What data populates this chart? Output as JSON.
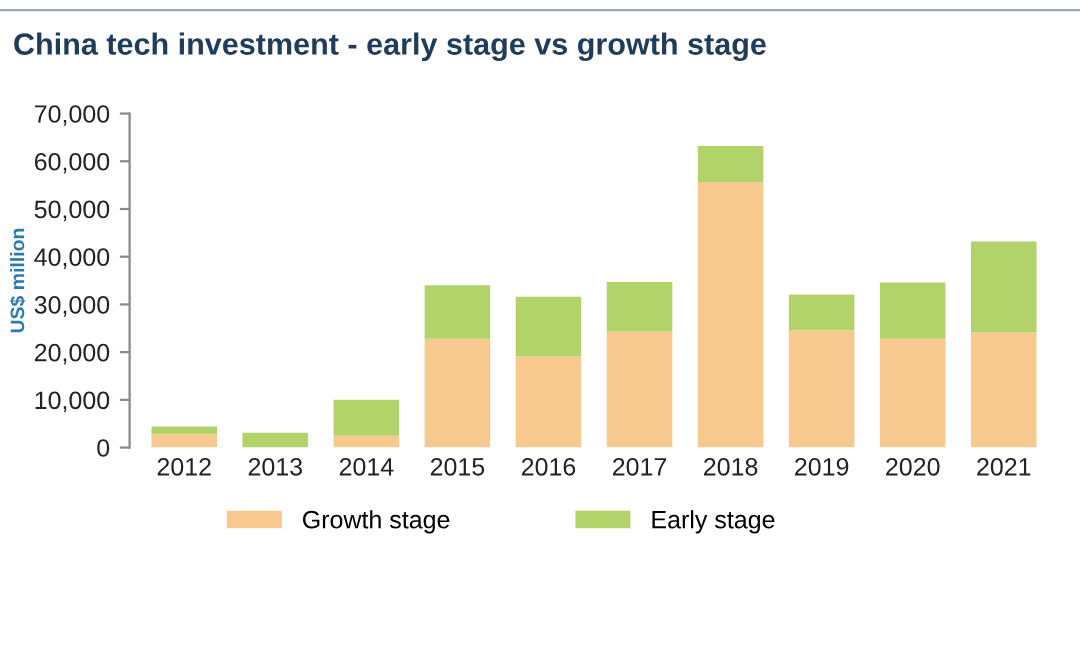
{
  "chart_data": {
    "type": "bar",
    "title": "China tech investment - early stage vs growth stage",
    "ylabel": "US$ million",
    "categories": [
      "2012",
      "2013",
      "2014",
      "2015",
      "2016",
      "2017",
      "2018",
      "2019",
      "2020",
      "2021"
    ],
    "series": [
      {
        "name": "Growth stage",
        "color": "#f7c98f",
        "values": [
          2800,
          0,
          2500,
          22800,
          19100,
          24300,
          55600,
          24600,
          22800,
          24100
        ]
      },
      {
        "name": "Early stage",
        "color": "#b2d36a",
        "values": [
          1600,
          3100,
          7500,
          11200,
          12500,
          10400,
          7600,
          7500,
          11800,
          19100
        ]
      }
    ],
    "stacked": true,
    "ylim": [
      0,
      70000
    ],
    "yticks": [
      {
        "value": 0,
        "label": "0"
      },
      {
        "value": 10000,
        "label": "10,000"
      },
      {
        "value": 20000,
        "label": "20,000"
      },
      {
        "value": 30000,
        "label": "30,000"
      },
      {
        "value": 40000,
        "label": "40,000"
      },
      {
        "value": 50000,
        "label": "50,000"
      },
      {
        "value": 60000,
        "label": "60,000"
      },
      {
        "value": 70000,
        "label": "70,000"
      }
    ],
    "grid": false,
    "legend": "bottom"
  }
}
